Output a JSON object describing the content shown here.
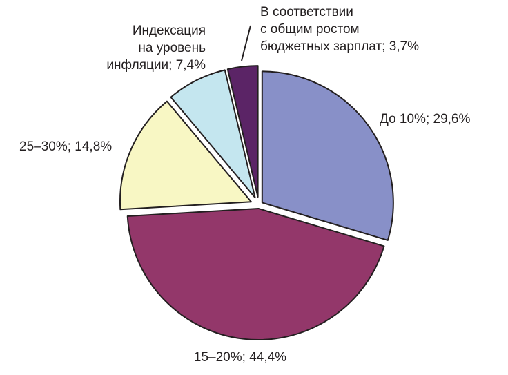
{
  "chart_data": {
    "type": "pie",
    "title": "",
    "slices": [
      {
        "label_lines": [
          "До 10%; 29,6%"
        ],
        "value": 29.6,
        "color": "#8890c8"
      },
      {
        "label_lines": [
          "15–20%; 44,4%"
        ],
        "value": 44.4,
        "color": "#93376a"
      },
      {
        "label_lines": [
          "25–30%; 14,8%"
        ],
        "value": 14.8,
        "color": "#f8f7c4"
      },
      {
        "label_lines": [
          "Индексация",
          "на уровень",
          "инфляции; 7,4%"
        ],
        "value": 7.4,
        "color": "#c4e6ef"
      },
      {
        "label_lines": [
          "В соответствии",
          "с общим ростом",
          "бюджетных зарплат; 3,7%"
        ],
        "value": 3.7,
        "color": "#5b2466"
      }
    ],
    "edge_color": "#231f20",
    "exploded": true,
    "legend": "none"
  }
}
